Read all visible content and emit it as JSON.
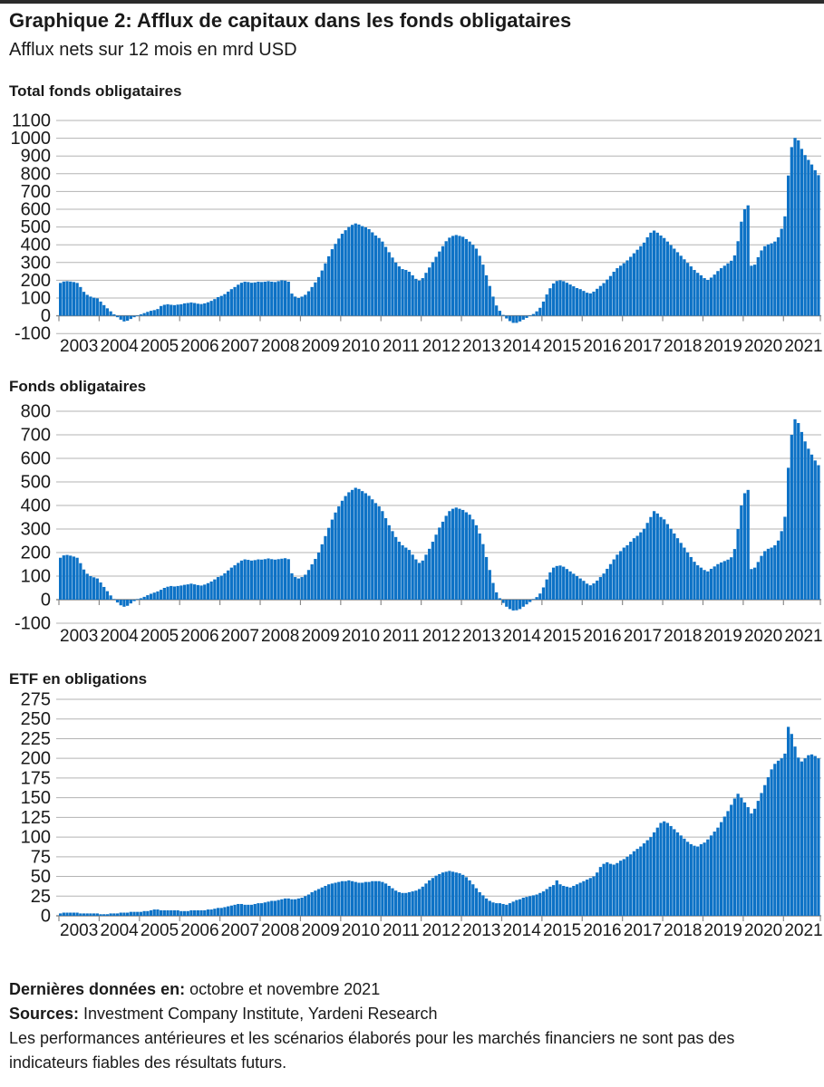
{
  "header": {
    "title": "Graphique 2: Afflux de capitaux dans les fonds obligataires",
    "subtitle": "Afflux nets sur 12 mois en mrd USD"
  },
  "colors": {
    "bar": "#0d72c6",
    "grid": "#b3b3b3",
    "axis": "#8a8a8a",
    "text": "#1a1a1a"
  },
  "footer": {
    "last_data_label": "Dernières données en:",
    "last_data_value": " octobre et novembre 2021",
    "sources_label": "Sources:",
    "sources_value": " Investment Company Institute, Yardeni Research",
    "disclaimer": "Les performances antérieures et les scénarios élaborés pour les marchés financiers ne sont pas des indicateurs fiables des résultats futurs."
  },
  "chart_data": [
    {
      "type": "bar",
      "title": "Total fonds obligataires",
      "unit": "mrd USD (afflux nets sur 12 mois)",
      "ylim": [
        -100,
        1100
      ],
      "ytick_step": 100,
      "grid": true,
      "x_start": "2003-01",
      "x_end": "2021-11",
      "x_year_labels": [
        "2003",
        "2004",
        "2005",
        "2006",
        "2007",
        "2008",
        "2009",
        "2010",
        "2011",
        "2012",
        "2013",
        "2014",
        "2015",
        "2016",
        "2017",
        "2018",
        "2019",
        "2020",
        "2021"
      ],
      "values_monthly": [
        185,
        193,
        195,
        193,
        190,
        185,
        162,
        135,
        118,
        108,
        102,
        98,
        80,
        60,
        42,
        25,
        8,
        -8,
        -22,
        -32,
        -28,
        -18,
        -8,
        -2,
        8,
        15,
        22,
        28,
        32,
        38,
        55,
        62,
        65,
        62,
        60,
        63,
        65,
        70,
        72,
        75,
        72,
        68,
        66,
        70,
        76,
        84,
        94,
        105,
        112,
        122,
        136,
        150,
        162,
        175,
        186,
        192,
        190,
        186,
        188,
        192,
        190,
        192,
        195,
        192,
        190,
        195,
        200,
        198,
        192,
        125,
        108,
        100,
        108,
        118,
        138,
        162,
        188,
        218,
        255,
        295,
        335,
        375,
        405,
        435,
        462,
        482,
        500,
        512,
        520,
        514,
        505,
        498,
        488,
        470,
        452,
        438,
        418,
        388,
        358,
        328,
        300,
        278,
        263,
        258,
        248,
        228,
        208,
        198,
        212,
        242,
        272,
        302,
        332,
        362,
        392,
        420,
        440,
        450,
        455,
        450,
        445,
        432,
        418,
        400,
        378,
        338,
        288,
        228,
        168,
        108,
        58,
        28,
        5,
        -15,
        -30,
        -40,
        -40,
        -32,
        -22,
        -12,
        -2,
        10,
        25,
        45,
        80,
        120,
        155,
        182,
        196,
        200,
        195,
        186,
        176,
        166,
        156,
        150,
        140,
        130,
        126,
        136,
        152,
        168,
        184,
        204,
        224,
        248,
        268,
        282,
        296,
        312,
        332,
        352,
        372,
        392,
        412,
        442,
        468,
        480,
        468,
        452,
        438,
        418,
        398,
        378,
        358,
        338,
        318,
        298,
        278,
        258,
        242,
        228,
        212,
        202,
        215,
        232,
        252,
        268,
        282,
        295,
        310,
        340,
        420,
        530,
        600,
        622,
        282,
        288,
        330,
        368,
        392,
        402,
        408,
        418,
        442,
        490,
        560,
        790,
        950,
        1002,
        988,
        940,
        905,
        878,
        852,
        820,
        792
      ]
    },
    {
      "type": "bar",
      "title": "Fonds obligataires",
      "unit": "mrd USD (afflux nets sur 12 mois)",
      "ylim": [
        -100,
        800
      ],
      "ytick_step": 100,
      "grid": true,
      "x_start": "2003-01",
      "x_end": "2021-11",
      "x_year_labels": [
        "2003",
        "2004",
        "2005",
        "2006",
        "2007",
        "2008",
        "2009",
        "2010",
        "2011",
        "2012",
        "2013",
        "2014",
        "2015",
        "2016",
        "2017",
        "2018",
        "2019",
        "2020",
        "2021"
      ],
      "values_monthly": [
        178,
        188,
        190,
        187,
        183,
        178,
        155,
        128,
        110,
        100,
        95,
        90,
        73,
        54,
        36,
        18,
        2,
        -12,
        -24,
        -30,
        -26,
        -16,
        -6,
        -1,
        6,
        12,
        19,
        25,
        30,
        35,
        42,
        50,
        55,
        58,
        56,
        58,
        60,
        63,
        65,
        68,
        65,
        62,
        60,
        64,
        70,
        77,
        86,
        96,
        102,
        112,
        124,
        136,
        146,
        156,
        166,
        171,
        169,
        166,
        168,
        171,
        170,
        172,
        175,
        172,
        170,
        172,
        174,
        176,
        172,
        112,
        96,
        90,
        96,
        106,
        126,
        150,
        173,
        200,
        235,
        270,
        305,
        340,
        370,
        396,
        420,
        440,
        456,
        466,
        475,
        470,
        461,
        452,
        441,
        426,
        410,
        396,
        376,
        346,
        316,
        291,
        266,
        246,
        231,
        221,
        211,
        191,
        171,
        156,
        166,
        191,
        216,
        246,
        276,
        306,
        331,
        356,
        376,
        386,
        391,
        386,
        381,
        371,
        361,
        341,
        316,
        281,
        236,
        181,
        126,
        71,
        31,
        6,
        -14,
        -30,
        -40,
        -46,
        -45,
        -40,
        -30,
        -20,
        -10,
        0,
        11,
        26,
        52,
        86,
        116,
        136,
        143,
        145,
        140,
        130,
        120,
        110,
        100,
        90,
        80,
        68,
        61,
        69,
        81,
        96,
        111,
        131,
        151,
        171,
        191,
        206,
        221,
        231,
        246,
        261,
        271,
        286,
        301,
        326,
        351,
        376,
        366,
        351,
        341,
        321,
        301,
        281,
        261,
        241,
        221,
        201,
        181,
        161,
        146,
        136,
        126,
        120,
        131,
        141,
        151,
        158,
        164,
        170,
        180,
        215,
        300,
        400,
        452,
        466,
        130,
        136,
        160,
        186,
        206,
        216,
        221,
        231,
        251,
        291,
        352,
        560,
        700,
        766,
        750,
        712,
        672,
        641,
        616,
        591,
        571
      ]
    },
    {
      "type": "bar",
      "title": "ETF en obligations",
      "unit": "mrd USD (afflux nets sur 12 mois)",
      "ylim": [
        0,
        275
      ],
      "ytick_step": 25,
      "grid": true,
      "x_start": "2003-01",
      "x_end": "2021-11",
      "x_year_labels": [
        "2003",
        "2004",
        "2005",
        "2006",
        "2007",
        "2008",
        "2009",
        "2010",
        "2011",
        "2012",
        "2013",
        "2014",
        "2015",
        "2016",
        "2017",
        "2018",
        "2019",
        "2020",
        "2021"
      ],
      "values_monthly": [
        3,
        4,
        4,
        4,
        4,
        4,
        3,
        3,
        3,
        3,
        3,
        3,
        2,
        2,
        2,
        3,
        3,
        3,
        4,
        4,
        4,
        5,
        5,
        5,
        5,
        6,
        6,
        7,
        8,
        8,
        7,
        7,
        7,
        7,
        7,
        7,
        6,
        6,
        6,
        7,
        7,
        7,
        7,
        7,
        8,
        8,
        9,
        10,
        10,
        11,
        12,
        13,
        14,
        15,
        15,
        14,
        14,
        14,
        15,
        16,
        16,
        17,
        18,
        19,
        19,
        20,
        21,
        22,
        22,
        21,
        21,
        22,
        23,
        25,
        27,
        30,
        32,
        34,
        36,
        38,
        40,
        41,
        42,
        43,
        44,
        44,
        45,
        44,
        43,
        42,
        42,
        43,
        43,
        44,
        44,
        44,
        43,
        41,
        38,
        35,
        32,
        30,
        29,
        29,
        30,
        31,
        32,
        34,
        37,
        41,
        45,
        48,
        51,
        53,
        55,
        56,
        57,
        56,
        55,
        54,
        52,
        49,
        45,
        40,
        35,
        30,
        26,
        22,
        19,
        17,
        16,
        16,
        15,
        14,
        16,
        18,
        20,
        21,
        23,
        24,
        25,
        26,
        27,
        29,
        31,
        34,
        37,
        39,
        45,
        40,
        38,
        37,
        36,
        38,
        40,
        42,
        44,
        46,
        48,
        50,
        55,
        62,
        66,
        68,
        66,
        65,
        67,
        70,
        72,
        75,
        78,
        82,
        85,
        88,
        92,
        96,
        100,
        106,
        112,
        118,
        120,
        118,
        114,
        110,
        106,
        102,
        98,
        94,
        91,
        89,
        88,
        91,
        93,
        97,
        102,
        107,
        112,
        119,
        126,
        133,
        141,
        149,
        155,
        150,
        144,
        138,
        130,
        136,
        146,
        156,
        166,
        176,
        186,
        193,
        197,
        200,
        206,
        240,
        231,
        215,
        201,
        196,
        200,
        204,
        205,
        203,
        200
      ]
    }
  ]
}
